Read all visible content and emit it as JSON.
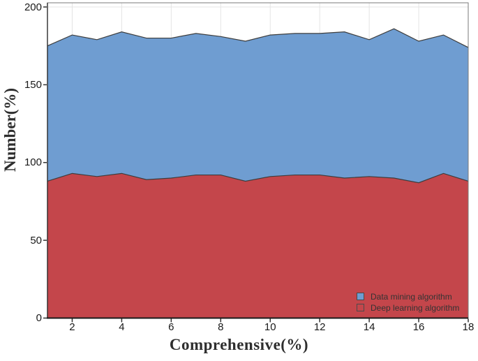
{
  "figure": {
    "background": "#ffffff",
    "plot_border_color": "#7a7a7a",
    "axis_line_color": "#1a1a1a",
    "gridline_color": "#e4e4e4",
    "tick_color": "#333333"
  },
  "chart_data": {
    "type": "area",
    "stacked": true,
    "title": "",
    "xlabel": "Comprehensive(%)",
    "ylabel": "Number(%)",
    "xlim": [
      1,
      18
    ],
    "ylim": [
      0,
      200
    ],
    "grid": "both-light-gray-behind-areas",
    "legend_position": "bottom-right-inside",
    "x": [
      1,
      2,
      3,
      4,
      5,
      6,
      7,
      8,
      9,
      10,
      11,
      12,
      13,
      14,
      15,
      16,
      17,
      18
    ],
    "x_ticks": [
      2,
      4,
      6,
      8,
      10,
      12,
      14,
      16,
      18
    ],
    "x_tick_labels": [
      "2",
      "4",
      "6",
      "8",
      "10",
      "12",
      "14",
      "16",
      "18"
    ],
    "y_ticks": [
      0,
      50,
      100,
      150,
      200
    ],
    "y_tick_labels": [
      "0",
      "50",
      "100",
      "150",
      "200"
    ],
    "series": [
      {
        "name": "Deep learning algorithm",
        "color": "#c4464b",
        "edge_color": "#3d3d3d",
        "stack_order": "bottom",
        "values": [
          88,
          93,
          91,
          93,
          89,
          90,
          92,
          92,
          88,
          91,
          92,
          92,
          90,
          91,
          90,
          87,
          93,
          88
        ]
      },
      {
        "name": "Data mining algorithm",
        "color": "#6f9dd1",
        "edge_color": "#3d3d3d",
        "stack_order": "top",
        "values": [
          87,
          89,
          88,
          91,
          91,
          90,
          91,
          89,
          90,
          91,
          91,
          91,
          94,
          88,
          96,
          91,
          89,
          86
        ]
      }
    ],
    "stacked_totals": [
      175,
      182,
      179,
      184,
      180,
      180,
      183,
      181,
      178,
      182,
      183,
      183,
      184,
      179,
      186,
      178,
      182,
      174
    ],
    "legend": {
      "entries": [
        {
          "label": "Data mining algorithm",
          "swatch": "blue-filled-square"
        },
        {
          "label": "Deep learning algorithm",
          "swatch": "outlined-transparent-square"
        }
      ]
    }
  }
}
